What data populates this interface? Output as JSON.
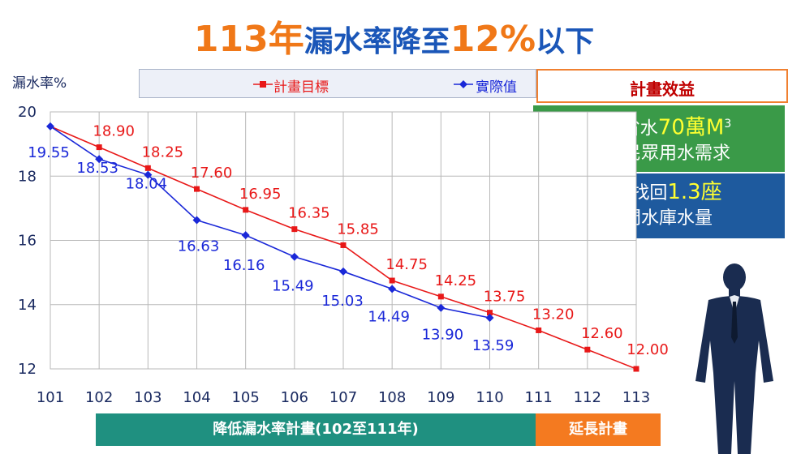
{
  "title": {
    "part1": "113年",
    "part2": "漏水率降至",
    "part3": "12%",
    "part4": "以下"
  },
  "legend": {
    "target": "計畫目標",
    "actual": "實際值"
  },
  "colors": {
    "target": "#e81818",
    "actual": "#1a28d8",
    "title_orange": "#f07818",
    "title_blue": "#1a56b8"
  },
  "benefits": {
    "header": "計畫效益",
    "box1_line1_pre": "每日省水",
    "box1_highlight": "70萬M",
    "box1_sup": "3",
    "box1_line2": "穩定民眾用水需求",
    "box2_line1_pre": "每年找回",
    "box2_highlight": "1.3座",
    "box2_line2": "石門水庫水量"
  },
  "plan_bar": {
    "main": "降低漏水率計畫(102至111年)",
    "extension": "延長計畫"
  },
  "chart_data": {
    "type": "line",
    "ylabel": "漏水率%",
    "ylim": [
      12,
      20
    ],
    "yticks": [
      12,
      14,
      16,
      18,
      20
    ],
    "categories": [
      "101",
      "102",
      "103",
      "104",
      "105",
      "106",
      "107",
      "108",
      "109",
      "110",
      "111",
      "112",
      "113"
    ],
    "grid": true,
    "series": [
      {
        "name": "計畫目標",
        "values": [
          null,
          18.9,
          18.25,
          17.6,
          16.95,
          16.35,
          15.85,
          14.75,
          14.25,
          13.75,
          13.2,
          12.6,
          12.0
        ],
        "labels": [
          null,
          "18.90",
          "18.25",
          "17.60",
          "16.95",
          "16.35",
          "15.85",
          "14.75",
          "14.25",
          "13.75",
          "13.20",
          "12.60",
          "12.00"
        ],
        "line_start": 19.55
      },
      {
        "name": "實際值",
        "values": [
          19.55,
          18.53,
          18.04,
          16.63,
          16.16,
          15.49,
          15.03,
          14.49,
          13.9,
          13.59,
          null,
          null,
          null
        ],
        "labels": [
          "19.55",
          "18.53",
          "18.04",
          "16.63",
          "16.16",
          "15.49",
          "15.03",
          "14.49",
          "13.90",
          "13.59",
          null,
          null,
          null
        ]
      }
    ]
  }
}
